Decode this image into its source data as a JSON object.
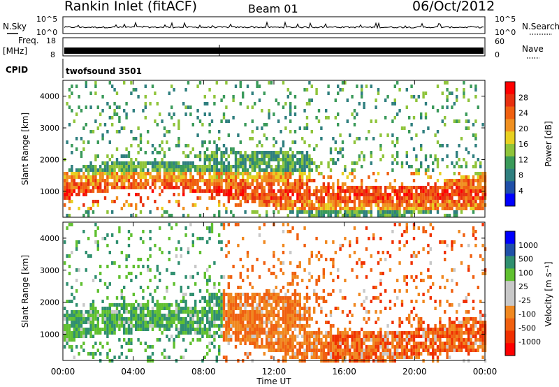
{
  "header": {
    "station": "Rankin Inlet (fitACF)",
    "beam": "Beam 01",
    "date": "06/Oct/2012"
  },
  "top_panels": {
    "nsky_label": "N.Sky",
    "nsky_ticks": [
      "10^5",
      "10^0"
    ],
    "nsearch_label": "N.Search",
    "nsearch_ticks": [
      "10^5",
      "10^0"
    ],
    "freq_label": "Freq.",
    "freq_unit": "[MHz]",
    "freq_ticks": [
      "18",
      "8"
    ],
    "nave_label": "Nave",
    "nave_ticks": [
      "60",
      "0"
    ],
    "cpid_label": "CPID",
    "cpid_value": "twofsound 3501"
  },
  "colors": {
    "power_scale": [
      "#0000ff",
      "#1f4fa8",
      "#2f7f7f",
      "#3a9a5a",
      "#8fc43a",
      "#e8d020",
      "#f09020",
      "#f06010",
      "#e83010",
      "#ff0000"
    ],
    "velocity_scale": [
      "#ff0000",
      "#f03000",
      "#f06010",
      "#f08820",
      "#c8c8c8",
      "#c8c8c8",
      "#60c030",
      "#2f8f6f",
      "#2050a8",
      "#0000ff"
    ]
  },
  "chart_data": [
    {
      "type": "heatmap",
      "title": "Power",
      "xlabel": "Time UT",
      "ylabel": "Slant Range [km]",
      "x_ticks": [
        "00:00",
        "04:00",
        "08:00",
        "12:00",
        "16:00",
        "20:00",
        "00:00"
      ],
      "xlim_hours": [
        0,
        24
      ],
      "y_ticks": [
        1000,
        2000,
        3000,
        4000
      ],
      "ylim": [
        180,
        4500
      ],
      "colorbar_label": "Power [dB]",
      "colorbar_ticks": [
        "28",
        "24",
        "20",
        "16",
        "12",
        "8",
        "4"
      ],
      "colorbar_range": [
        0,
        30
      ]
    },
    {
      "type": "heatmap",
      "title": "Velocity",
      "xlabel": "Time UT",
      "ylabel": "Slant Range [km]",
      "x_ticks": [
        "00:00",
        "04:00",
        "08:00",
        "12:00",
        "16:00",
        "20:00",
        "00:00"
      ],
      "xlim_hours": [
        0,
        24
      ],
      "y_ticks": [
        1000,
        2000,
        3000,
        4000
      ],
      "ylim": [
        180,
        4500
      ],
      "colorbar_label": "Velocity [m s⁻¹]",
      "colorbar_ticks": [
        "1000",
        "500",
        "100",
        "25",
        "-25",
        "-100",
        "-500",
        "-1000"
      ]
    }
  ],
  "axis": {
    "time_label": "Time UT",
    "range_label": "Slant Range [km]",
    "power_cb_label": "Power [dB]",
    "velocity_cb_label": "Velocity [m s⁻¹]"
  }
}
